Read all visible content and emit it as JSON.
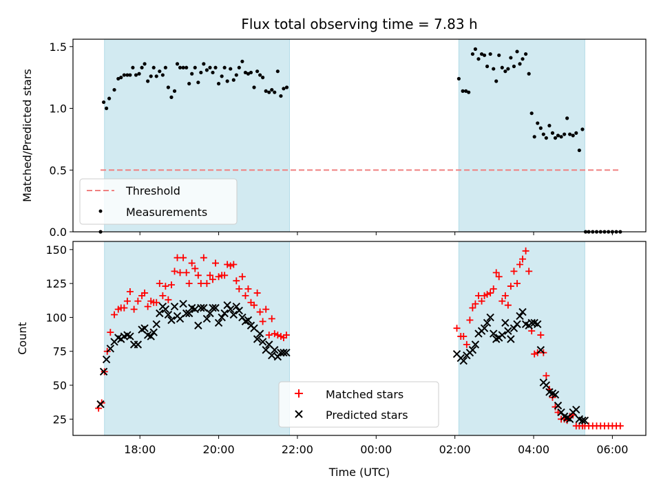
{
  "title": "Flux total observing time = 7.83 h",
  "chart_data": {
    "type": "scatter",
    "xlabel": "Time (UTC)",
    "x_unit": "hours since 00:00 UTC (negative = previous day)",
    "xlim": [
      -7.7,
      6.85
    ],
    "xticks": [
      -6,
      -4,
      -2,
      0,
      2,
      4,
      6
    ],
    "xtick_labels": [
      "18:00",
      "20:00",
      "22:00",
      "00:00",
      "02:00",
      "04:00",
      "06:00"
    ],
    "shaded_intervals": [
      [
        -6.9,
        -2.2
      ],
      [
        2.1,
        5.3
      ]
    ],
    "shade_color": "#add8e6",
    "panels": [
      {
        "name": "ratio",
        "ylabel": "Matched/Predicted stars",
        "ylim": [
          0,
          1.56
        ],
        "yticks": [
          0.0,
          0.5,
          1.0,
          1.5
        ],
        "ytick_labels": [
          "0.0",
          "0.5",
          "1.0",
          "1.5"
        ],
        "threshold": {
          "label": "Threshold",
          "value": 0.5,
          "x_range": [
            -7.0,
            6.2
          ],
          "color": "#f08080"
        },
        "measurements": {
          "label": "Measurements",
          "color": "#000000",
          "x": [
            -7.0,
            -6.92,
            -6.85,
            -6.78,
            -6.65,
            -6.55,
            -6.48,
            -6.4,
            -6.32,
            -6.25,
            -6.18,
            -6.1,
            -6.02,
            -5.95,
            -5.88,
            -5.8,
            -5.72,
            -5.65,
            -5.58,
            -5.5,
            -5.42,
            -5.35,
            -5.28,
            -5.2,
            -5.12,
            -5.05,
            -4.98,
            -4.9,
            -4.82,
            -4.75,
            -4.68,
            -4.6,
            -4.52,
            -4.45,
            -4.38,
            -4.3,
            -4.22,
            -4.15,
            -4.08,
            -4.0,
            -3.92,
            -3.85,
            -3.78,
            -3.7,
            -3.62,
            -3.55,
            -3.48,
            -3.4,
            -3.32,
            -3.25,
            -3.18,
            -3.1,
            -3.02,
            -2.95,
            -2.88,
            -2.8,
            -2.72,
            -2.65,
            -2.58,
            -2.5,
            -2.42,
            -2.35,
            -2.27,
            2.1,
            2.2,
            2.28,
            2.35,
            2.45,
            2.52,
            2.6,
            2.68,
            2.75,
            2.82,
            2.9,
            2.98,
            3.05,
            3.12,
            3.2,
            3.28,
            3.35,
            3.42,
            3.5,
            3.58,
            3.65,
            3.72,
            3.8,
            3.88,
            3.95,
            4.02,
            4.1,
            4.18,
            4.25,
            4.32,
            4.4,
            4.48,
            4.55,
            4.62,
            4.7,
            4.78,
            4.85,
            4.92,
            5.0,
            5.08,
            5.16,
            5.24,
            5.32,
            5.4,
            5.5,
            5.6,
            5.7,
            5.8,
            5.9,
            6.0,
            6.1,
            6.2
          ],
          "y": [
            0.0,
            1.05,
            1.0,
            1.08,
            1.15,
            1.24,
            1.25,
            1.27,
            1.27,
            1.27,
            1.33,
            1.27,
            1.28,
            1.33,
            1.36,
            1.22,
            1.26,
            1.33,
            1.26,
            1.3,
            1.27,
            1.33,
            1.17,
            1.09,
            1.14,
            1.36,
            1.33,
            1.33,
            1.33,
            1.2,
            1.28,
            1.33,
            1.21,
            1.29,
            1.36,
            1.31,
            1.33,
            1.29,
            1.33,
            1.2,
            1.26,
            1.33,
            1.22,
            1.32,
            1.23,
            1.27,
            1.33,
            1.38,
            1.29,
            1.28,
            1.29,
            1.17,
            1.3,
            1.27,
            1.25,
            1.14,
            1.13,
            1.15,
            1.13,
            1.3,
            1.1,
            1.16,
            1.17,
            1.24,
            1.14,
            1.14,
            1.13,
            1.44,
            1.48,
            1.4,
            1.44,
            1.43,
            1.34,
            1.44,
            1.32,
            1.22,
            1.43,
            1.33,
            1.3,
            1.32,
            1.41,
            1.34,
            1.46,
            1.36,
            1.4,
            1.44,
            1.28,
            0.96,
            0.77,
            0.88,
            0.84,
            0.79,
            0.76,
            0.86,
            0.8,
            0.76,
            0.78,
            0.77,
            0.79,
            0.92,
            0.79,
            0.78,
            0.8,
            0.66,
            0.83,
            0.0,
            0.0,
            0.0,
            0.0,
            0.0,
            0.0,
            0.0,
            0.0,
            0.0,
            0.0
          ]
        },
        "legend": {
          "position": "lower-left",
          "entries": [
            "Threshold",
            "Measurements"
          ]
        }
      },
      {
        "name": "counts",
        "ylabel": "Count",
        "ylim": [
          13,
          156
        ],
        "yticks": [
          25,
          50,
          75,
          100,
          125,
          150
        ],
        "ytick_labels": [
          "25",
          "50",
          "75",
          "100",
          "125",
          "150"
        ],
        "series": [
          {
            "name": "Matched stars",
            "marker": "+",
            "color": "#ff0000",
            "x": [
              -7.05,
              -6.97,
              -6.9,
              -6.83,
              -6.75,
              -6.65,
              -6.55,
              -6.48,
              -6.4,
              -6.32,
              -6.25,
              -6.15,
              -6.05,
              -5.95,
              -5.88,
              -5.8,
              -5.72,
              -5.65,
              -5.58,
              -5.5,
              -5.42,
              -5.35,
              -5.28,
              -5.2,
              -5.12,
              -5.05,
              -4.98,
              -4.9,
              -4.82,
              -4.75,
              -4.68,
              -4.6,
              -4.52,
              -4.45,
              -4.38,
              -4.3,
              -4.22,
              -4.15,
              -4.08,
              -4.0,
              -3.92,
              -3.85,
              -3.78,
              -3.7,
              -3.62,
              -3.55,
              -3.48,
              -3.4,
              -3.32,
              -3.25,
              -3.18,
              -3.1,
              -3.02,
              -2.95,
              -2.88,
              -2.8,
              -2.72,
              -2.65,
              -2.58,
              -2.5,
              -2.42,
              -2.35,
              -2.28,
              2.05,
              2.15,
              2.22,
              2.3,
              2.38,
              2.45,
              2.52,
              2.6,
              2.68,
              2.75,
              2.82,
              2.9,
              2.98,
              3.05,
              3.12,
              3.2,
              3.28,
              3.35,
              3.42,
              3.5,
              3.58,
              3.65,
              3.72,
              3.8,
              3.88,
              3.95,
              4.02,
              4.1,
              4.18,
              4.25,
              4.32,
              4.4,
              4.48,
              4.55,
              4.62,
              4.7,
              4.78,
              4.85,
              4.92,
              5.0,
              5.08,
              5.16,
              5.24,
              5.3,
              5.4,
              5.5,
              5.6,
              5.7,
              5.8,
              5.9,
              6.0,
              6.1,
              6.2
            ],
            "y": [
              33,
              37,
              60,
              75,
              89,
              102,
              106,
              107,
              107,
              112,
              119,
              106,
              112,
              116,
              118,
              108,
              112,
              111,
              111,
              125,
              116,
              123,
              113,
              124,
              134,
              144,
              133,
              144,
              133,
              125,
              140,
              136,
              131,
              125,
              144,
              125,
              131,
              128,
              140,
              130,
              131,
              131,
              139,
              138,
              139,
              127,
              121,
              130,
              116,
              121,
              111,
              109,
              118,
              104,
              97,
              106,
              87,
              99,
              88,
              87,
              86,
              85,
              87,
              92,
              86,
              86,
              80,
              98,
              107,
              110,
              116,
              112,
              116,
              117,
              118,
              121,
              133,
              130,
              112,
              116,
              109,
              123,
              134,
              125,
              139,
              143,
              149,
              134,
              90,
              73,
              74,
              87,
              74,
              57,
              47,
              41,
              34,
              30,
              25,
              25,
              24,
              27,
              28,
              20,
              20,
              20,
              20,
              20,
              20,
              20,
              20,
              20,
              20,
              20,
              20,
              20
            ]
          },
          {
            "name": "Predicted stars",
            "marker": "x",
            "color": "#000000",
            "x": [
              -7.0,
              -6.92,
              -6.85,
              -6.75,
              -6.65,
              -6.55,
              -6.48,
              -6.4,
              -6.32,
              -6.25,
              -6.15,
              -6.05,
              -5.95,
              -5.88,
              -5.8,
              -5.72,
              -5.65,
              -5.58,
              -5.5,
              -5.42,
              -5.35,
              -5.28,
              -5.2,
              -5.12,
              -5.05,
              -4.98,
              -4.9,
              -4.82,
              -4.75,
              -4.68,
              -4.6,
              -4.52,
              -4.45,
              -4.38,
              -4.3,
              -4.22,
              -4.15,
              -4.08,
              -4.0,
              -3.92,
              -3.85,
              -3.78,
              -3.7,
              -3.62,
              -3.55,
              -3.48,
              -3.4,
              -3.32,
              -3.25,
              -3.18,
              -3.1,
              -3.02,
              -2.95,
              -2.88,
              -2.8,
              -2.72,
              -2.65,
              -2.58,
              -2.5,
              -2.42,
              -2.35,
              -2.28,
              2.05,
              2.15,
              2.22,
              2.3,
              2.38,
              2.45,
              2.52,
              2.6,
              2.68,
              2.75,
              2.82,
              2.9,
              2.98,
              3.05,
              3.12,
              3.2,
              3.28,
              3.35,
              3.42,
              3.5,
              3.58,
              3.65,
              3.72,
              3.8,
              3.88,
              3.95,
              4.02,
              4.1,
              4.18,
              4.25,
              4.32,
              4.4,
              4.48,
              4.55,
              4.62,
              4.7,
              4.78,
              4.85,
              4.92,
              5.0,
              5.08,
              5.16,
              5.24,
              5.3
            ],
            "y": [
              36,
              60,
              69,
              77,
              82,
              85,
              84,
              86,
              87,
              86,
              80,
              80,
              91,
              92,
              87,
              86,
              89,
              95,
              103,
              108,
              106,
              102,
              98,
              108,
              101,
              99,
              110,
              103,
              103,
              107,
              106,
              94,
              107,
              107,
              99,
              103,
              107,
              107,
              96,
              100,
              103,
              109,
              106,
              102,
              108,
              105,
              100,
              97,
              98,
              94,
              92,
              84,
              88,
              82,
              76,
              80,
              72,
              76,
              71,
              74,
              74,
              74,
              73,
              70,
              68,
              72,
              74,
              76,
              80,
              88,
              90,
              92,
              96,
              100,
              88,
              84,
              85,
              87,
              96,
              90,
              84,
              92,
              95,
              101,
              104,
              95,
              94,
              96,
              96,
              95,
              76,
              52,
              50,
              45,
              44,
              43,
              35,
              30,
              27,
              26,
              25,
              30,
              32,
              25,
              24,
              24
            ]
          }
        ],
        "legend": {
          "position": "lower-center",
          "entries": [
            "Matched stars",
            "Predicted stars"
          ]
        }
      }
    ]
  }
}
